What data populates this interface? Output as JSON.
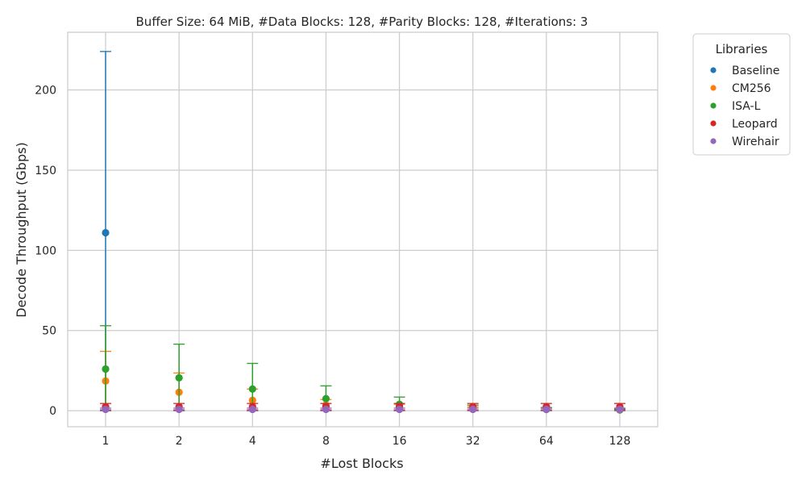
{
  "chart_data": {
    "type": "scatter",
    "title": "Buffer Size: 64 MiB, #Data Blocks: 128, #Parity Blocks: 128, #Iterations: 3",
    "xlabel": "#Lost Blocks",
    "ylabel": "Decode Throughput (Gbps)",
    "categories": [
      "1",
      "2",
      "4",
      "8",
      "16",
      "32",
      "64",
      "128"
    ],
    "ylim": [
      -10,
      236
    ],
    "yticks": [
      0,
      50,
      100,
      150,
      200
    ],
    "grid": true,
    "error_bars": true,
    "legend": {
      "title": "Libraries",
      "placement": "outside-top-right"
    },
    "series": [
      {
        "name": "Baseline",
        "color": "#1f77b4",
        "values": [
          111,
          null,
          null,
          null,
          null,
          null,
          null,
          null
        ],
        "err_low": [
          0,
          null,
          null,
          null,
          null,
          null,
          null,
          null
        ],
        "err_high": [
          224,
          null,
          null,
          null,
          null,
          null,
          null,
          null
        ]
      },
      {
        "name": "CM256",
        "color": "#ff7f0e",
        "values": [
          18.5,
          11.5,
          6.5,
          3.5,
          2,
          1,
          0.8,
          0.5
        ],
        "err_low": [
          0,
          0,
          0,
          0,
          0,
          0,
          0,
          0
        ],
        "err_high": [
          37,
          23.5,
          13.5,
          7,
          4,
          2.5,
          1.5,
          1
        ]
      },
      {
        "name": "ISA-L",
        "color": "#2ca02c",
        "values": [
          26,
          20.5,
          13.5,
          7.5,
          4,
          1.5,
          0.8,
          0.5
        ],
        "err_low": [
          0,
          0,
          0,
          0,
          0,
          0,
          0,
          0
        ],
        "err_high": [
          53,
          41.5,
          29.5,
          15.5,
          8.5,
          3.5,
          2,
          1
        ]
      },
      {
        "name": "Leopard",
        "color": "#d62728",
        "values": [
          2.5,
          2.5,
          2.5,
          2.5,
          2.5,
          2.5,
          2.5,
          2.5
        ],
        "err_low": [
          0.5,
          0.5,
          0.5,
          0.5,
          0.5,
          0.5,
          0.5,
          0.5
        ],
        "err_high": [
          4.5,
          4.5,
          4.5,
          4.5,
          4.5,
          4.5,
          4.5,
          4.5
        ]
      },
      {
        "name": "Wirehair",
        "color": "#9467bd",
        "values": [
          0.8,
          0.8,
          0.8,
          0.8,
          0.8,
          0.8,
          0.8,
          0.8
        ],
        "err_low": [
          0,
          0,
          0,
          0,
          0,
          0,
          0,
          0
        ],
        "err_high": [
          1.6,
          1.6,
          1.6,
          1.6,
          1.6,
          1.6,
          1.6,
          1.6
        ]
      }
    ]
  }
}
